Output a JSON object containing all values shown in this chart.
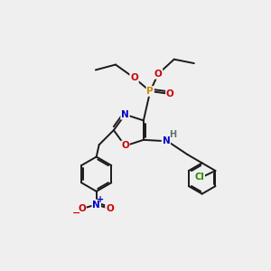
{
  "bg_color": "#efefef",
  "bond_color": "#1a1a1a",
  "colors": {
    "N": "#0000cc",
    "O": "#cc0000",
    "P": "#cc8800",
    "Cl": "#228800",
    "H": "#607070",
    "C": "#1a1a1a"
  }
}
